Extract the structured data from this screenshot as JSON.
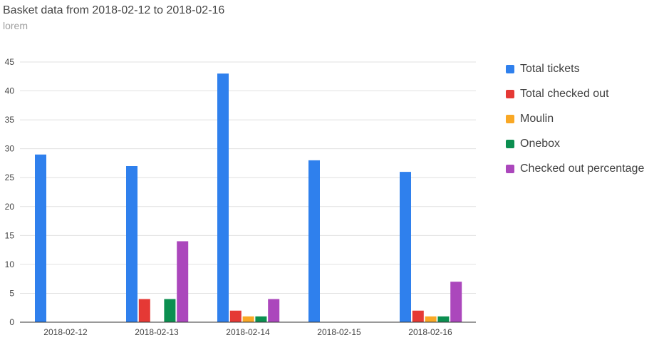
{
  "chart_data": {
    "type": "bar",
    "title": "Basket data from 2018-02-12 to 2018-02-16",
    "subtitle": "lorem",
    "xlabel": "",
    "ylabel": "",
    "ylim": [
      0,
      45
    ],
    "yticks": [
      0,
      5,
      10,
      15,
      20,
      25,
      30,
      35,
      40,
      45
    ],
    "grid": true,
    "legend_position": "right",
    "categories": [
      "2018-02-12",
      "2018-02-13",
      "2018-02-14",
      "2018-02-15",
      "2018-02-16"
    ],
    "series": [
      {
        "name": "Total tickets",
        "color": "#2f80ed",
        "values": [
          29,
          27,
          43,
          28,
          26
        ]
      },
      {
        "name": "Total checked out",
        "color": "#e53935",
        "values": [
          0,
          4,
          2,
          0,
          2
        ]
      },
      {
        "name": "Moulin",
        "color": "#f9a825",
        "values": [
          0,
          0,
          1,
          0,
          1
        ]
      },
      {
        "name": "Onebox",
        "color": "#0b8f50",
        "values": [
          0,
          4,
          1,
          0,
          1
        ]
      },
      {
        "name": "Checked out percentage",
        "color": "#ab47bc",
        "values": [
          0,
          14,
          4,
          0,
          7
        ]
      }
    ]
  }
}
